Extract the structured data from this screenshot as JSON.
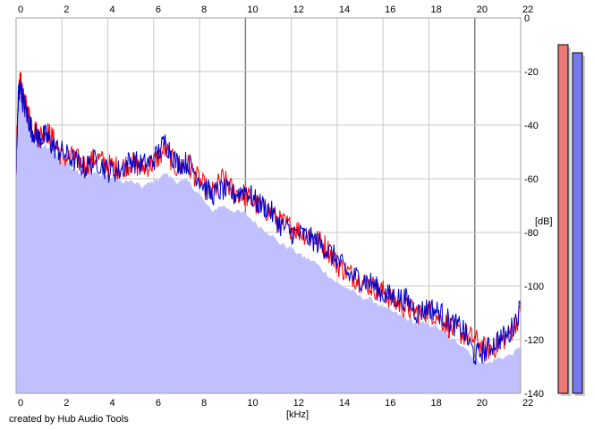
{
  "credit": "created by Hub Audio Tools",
  "chart_data": {
    "type": "area",
    "xlabel": "[kHz]",
    "ylabel": "[dB]",
    "xlim": [
      0,
      22
    ],
    "ylim": [
      -140,
      0
    ],
    "x_ticks": [
      0,
      2,
      4,
      6,
      8,
      10,
      12,
      14,
      16,
      18,
      20,
      22
    ],
    "y_ticks": [
      0,
      -20,
      -40,
      -60,
      -80,
      -100,
      -120,
      -140
    ],
    "y_tick_labels": [
      "0",
      "-20",
      "-40",
      "-60",
      "-80",
      "-100",
      "-120",
      "-140"
    ],
    "grid": true,
    "colors": {
      "background": "#ffffff",
      "grid": "#c8c8c8",
      "grid_major": "#808080",
      "fill": "#c0c0ff",
      "left_channel": "#ff0000",
      "right_channel": "#0000cc",
      "left_meter": "#ee7777",
      "right_meter": "#7777ee"
    },
    "series": [
      {
        "name": "",
        "color": "#ff0000",
        "x": [
          0,
          0.1,
          0.2,
          0.3,
          0.5,
          0.7,
          1.0,
          1.3,
          1.6,
          2.0,
          2.5,
          3.0,
          3.5,
          4.0,
          4.5,
          5.0,
          5.5,
          6.0,
          6.5,
          7.0,
          7.5,
          8.0,
          8.5,
          9.0,
          9.5,
          10.0,
          10.5,
          11.0,
          11.5,
          12.0,
          12.5,
          13.0,
          13.5,
          14.0,
          14.5,
          15.0,
          15.5,
          16.0,
          16.5,
          17.0,
          17.5,
          18.0,
          18.5,
          19.0,
          19.5,
          20.0,
          20.5,
          21.0,
          21.5,
          22.0
        ],
        "values": [
          -57,
          -27,
          -24,
          -30,
          -35,
          -40,
          -44,
          -42,
          -45,
          -52,
          -52,
          -55,
          -52,
          -55,
          -56,
          -54,
          -56,
          -54,
          -49,
          -56,
          -55,
          -61,
          -66,
          -60,
          -65,
          -66,
          -70,
          -72,
          -76,
          -78,
          -80,
          -82,
          -85,
          -92,
          -95,
          -98,
          -100,
          -102,
          -106,
          -108,
          -110,
          -109,
          -112,
          -116,
          -118,
          -120,
          -124,
          -122,
          -118,
          -110
        ]
      },
      {
        "name": "",
        "color": "#0000cc",
        "x": [
          0,
          0.1,
          0.2,
          0.3,
          0.5,
          0.7,
          1.0,
          1.3,
          1.6,
          2.0,
          2.5,
          3.0,
          3.5,
          4.0,
          4.5,
          5.0,
          5.5,
          6.0,
          6.5,
          7.0,
          7.5,
          8.0,
          8.5,
          9.0,
          9.5,
          10.0,
          10.5,
          11.0,
          11.5,
          12.0,
          12.5,
          13.0,
          13.5,
          14.0,
          14.5,
          15.0,
          15.5,
          16.0,
          16.5,
          17.0,
          17.5,
          18.0,
          18.5,
          19.0,
          19.5,
          20.0,
          20.5,
          21.0,
          21.5,
          22.0
        ],
        "values": [
          -58,
          -29,
          -26,
          -31,
          -37,
          -42,
          -45,
          -44,
          -48,
          -50,
          -53,
          -56,
          -53,
          -57,
          -57,
          -53,
          -55,
          -53,
          -46,
          -54,
          -54,
          -60,
          -66,
          -64,
          -66,
          -64,
          -69,
          -71,
          -77,
          -80,
          -81,
          -83,
          -86,
          -90,
          -96,
          -97,
          -99,
          -103,
          -104,
          -105,
          -110,
          -108,
          -110,
          -114,
          -116,
          -126,
          -124,
          -120,
          -118,
          -108
        ]
      }
    ],
    "fill_envelope": {
      "x": [
        0,
        0.1,
        0.2,
        0.3,
        0.5,
        0.7,
        1.0,
        1.3,
        1.6,
        2.0,
        2.5,
        3.0,
        3.5,
        4.0,
        4.5,
        5.0,
        5.5,
        6.0,
        6.5,
        7.0,
        7.5,
        8.0,
        8.5,
        9.0,
        9.5,
        10.0,
        10.5,
        11.0,
        11.5,
        12.0,
        12.5,
        13.0,
        13.5,
        14.0,
        14.5,
        15.0,
        15.5,
        16.0,
        16.5,
        17.0,
        17.5,
        18.0,
        18.5,
        19.0,
        19.5,
        20.0,
        20.5,
        21.0,
        21.5,
        22.0
      ],
      "values": [
        -50,
        -31,
        -29,
        -33,
        -38,
        -45,
        -48,
        -48,
        -50,
        -53,
        -56,
        -59,
        -58,
        -59,
        -61,
        -61,
        -63,
        -61,
        -58,
        -61,
        -61,
        -66,
        -72,
        -70,
        -72,
        -73,
        -77,
        -80,
        -84,
        -86,
        -89,
        -91,
        -95,
        -99,
        -101,
        -104,
        -105,
        -108,
        -110,
        -112,
        -114,
        -114,
        -116,
        -120,
        -122,
        -127,
        -129,
        -127,
        -126,
        -123
      ]
    },
    "meters": [
      {
        "channel": "left",
        "level_db": -10,
        "color": "#ee7777"
      },
      {
        "channel": "right",
        "level_db": -13,
        "color": "#7777ee"
      }
    ]
  }
}
